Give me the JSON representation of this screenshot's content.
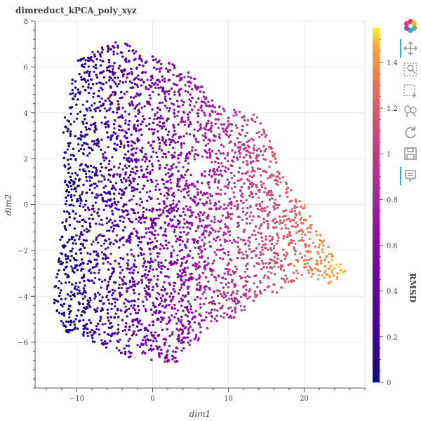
{
  "chart_data": {
    "type": "scatter",
    "title": "dimreduct_kPCA_poly_xyz",
    "xlabel": "dim1",
    "ylabel": "dim2",
    "xlim": [
      -15.5,
      28
    ],
    "ylim": [
      -8,
      8
    ],
    "xticks": [
      -10,
      0,
      10,
      20
    ],
    "yticks": [
      -6,
      -4,
      -2,
      0,
      2,
      4,
      6,
      8
    ],
    "grid": true,
    "colorbar": {
      "label": "RMSD",
      "colormap": "Plasma",
      "range": [
        0,
        1.55
      ],
      "ticks": [
        0,
        0.2,
        0.4,
        0.6,
        0.8,
        1,
        1.2,
        1.4
      ]
    },
    "cloud_shape": {
      "description_points": [
        [
          -13.2,
          -4.2
        ],
        [
          -11.5,
          -5.6
        ],
        [
          -8,
          -6
        ],
        [
          -2,
          -6.8
        ],
        [
          0,
          -6.8
        ],
        [
          3,
          -7
        ],
        [
          7,
          -5.6
        ],
        [
          9,
          -5
        ],
        [
          11,
          -5
        ],
        [
          14,
          -4
        ],
        [
          17,
          -3.8
        ],
        [
          20,
          -3
        ],
        [
          23,
          -3.5
        ],
        [
          25.6,
          -3
        ],
        [
          24,
          -2.2
        ],
        [
          22,
          -1.2
        ],
        [
          20,
          0
        ],
        [
          17,
          1.5
        ],
        [
          15,
          3.4
        ],
        [
          13,
          4.1
        ],
        [
          9,
          4.3
        ],
        [
          7,
          5
        ],
        [
          5,
          5.8
        ],
        [
          2,
          6.2
        ],
        [
          -1,
          6.6
        ],
        [
          -4,
          7.2
        ],
        [
          -7,
          6.8
        ],
        [
          -10,
          6.3
        ],
        [
          -11.3,
          4.8
        ],
        [
          -11.8,
          3
        ],
        [
          -11.5,
          0.5
        ],
        [
          -12.5,
          -2.5
        ]
      ]
    }
  },
  "toolbar": {
    "tools": [
      "bokeh-logo",
      "pan",
      "box-zoom",
      "box-select",
      "wheel-zoom",
      "reset",
      "save",
      "hover"
    ],
    "active": [
      "pan",
      "hover"
    ]
  }
}
